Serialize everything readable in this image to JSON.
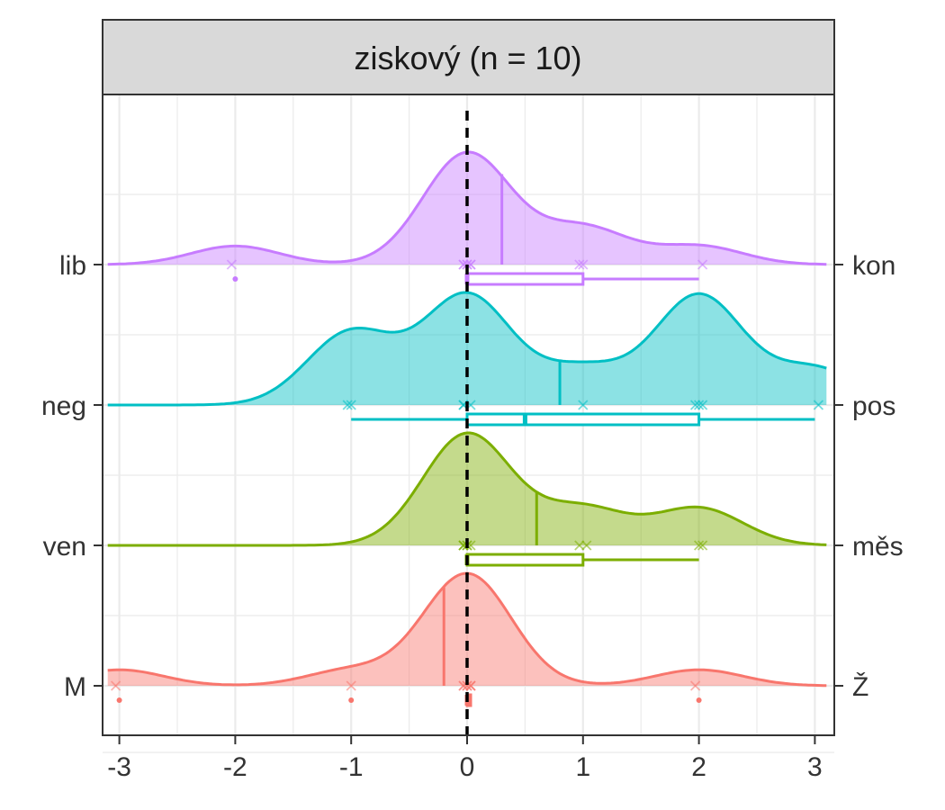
{
  "panel_title": "ziskový (n = 10)",
  "chart_data": {
    "type": "ridgeline-density-boxplot",
    "title": "ziskový (n = 10)",
    "xlim": [
      -3.1,
      3.1
    ],
    "x_ticks": [
      -3,
      -2,
      -1,
      0,
      1,
      2,
      3
    ],
    "x_tick_labels": [
      "-3",
      "-2",
      "-1",
      "0",
      "1",
      "2",
      "3"
    ],
    "reference_line_x": 0,
    "grid": true,
    "series": [
      {
        "left_label": "M",
        "right_label": "Ž",
        "color": "#F8766D",
        "points": [
          -3,
          -1,
          0,
          0,
          0,
          0,
          0,
          0,
          0,
          2
        ],
        "mean": -0.2,
        "box": {
          "min": 0,
          "q1": 0,
          "median": 0,
          "q3": 0,
          "max": 0
        },
        "outliers": [
          -3,
          -1,
          2
        ]
      },
      {
        "left_label": "ven",
        "right_label": "měs",
        "color": "#7CAE00",
        "points": [
          0,
          0,
          0,
          0,
          0,
          1,
          1,
          2,
          2,
          0
        ],
        "mean": 0.6,
        "box": {
          "min": 0,
          "q1": 0,
          "median": 0,
          "q3": 1,
          "max": 2
        },
        "outliers": []
      },
      {
        "left_label": "neg",
        "right_label": "pos",
        "color": "#00BFC4",
        "points": [
          -1,
          -1,
          0,
          0,
          1,
          2,
          2,
          2,
          3,
          0
        ],
        "mean": 0.8,
        "box": {
          "min": -1,
          "q1": 0,
          "median": 0.5,
          "q3": 2,
          "max": 3
        },
        "outliers": []
      },
      {
        "left_label": "lib",
        "right_label": "kon",
        "color": "#C77CFF",
        "points": [
          -2,
          0,
          0,
          0,
          0,
          0,
          1,
          1,
          2,
          0
        ],
        "mean": 0.3,
        "box": {
          "min": 0,
          "q1": 0,
          "median": 0,
          "q3": 1,
          "max": 2
        },
        "outliers": [
          -2
        ]
      }
    ]
  }
}
